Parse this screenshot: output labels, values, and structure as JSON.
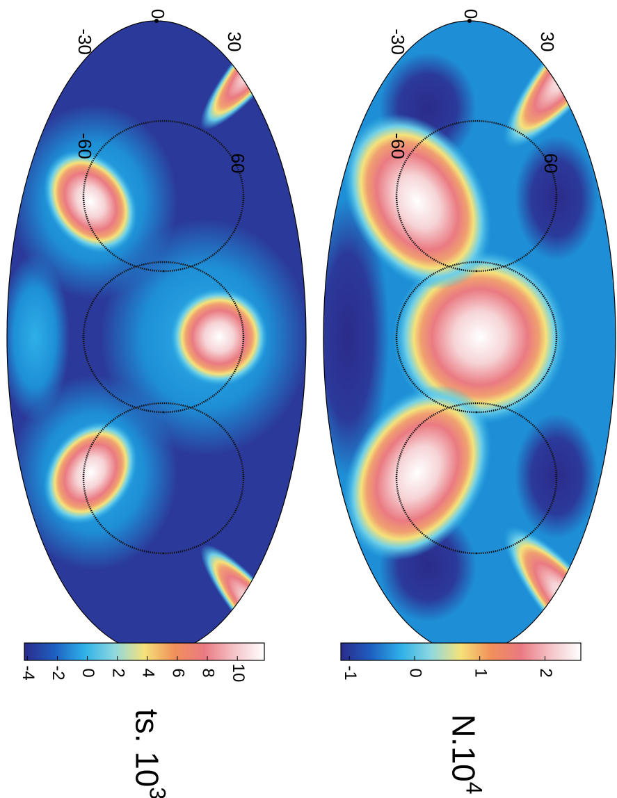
{
  "chart_data": [
    {
      "type": "heatmap",
      "colorbar_label": "N.10",
      "colorbar_label_exponent": "4",
      "lat_labels": [
        "0",
        "-30",
        "30",
        "-60",
        "60"
      ],
      "clim": [
        -1.13,
        2.55
      ],
      "cticks": [
        -1,
        0,
        1,
        2
      ],
      "colormap": [
        "#2b2b8a",
        "#1e5fc0",
        "#2eb0e8",
        "#8ed8e0",
        "#f5e27a",
        "#f0905a",
        "#ea7a82",
        "#f4c4c8",
        "#ffffff"
      ]
    },
    {
      "type": "heatmap",
      "colorbar_label": "ts. 10",
      "colorbar_label_exponent": "3",
      "lat_labels": [
        "0",
        "-30",
        "30",
        "-60",
        "60"
      ],
      "clim": [
        -4.2,
        11.8
      ],
      "cticks": [
        -4,
        -2,
        0,
        2,
        4,
        6,
        8,
        10
      ],
      "colormap": [
        "#2b2b8a",
        "#1e5fc0",
        "#2eb0e8",
        "#8ed8e0",
        "#f5e27a",
        "#f0905a",
        "#ea7a82",
        "#f4c4c8",
        "#ffffff"
      ]
    }
  ]
}
